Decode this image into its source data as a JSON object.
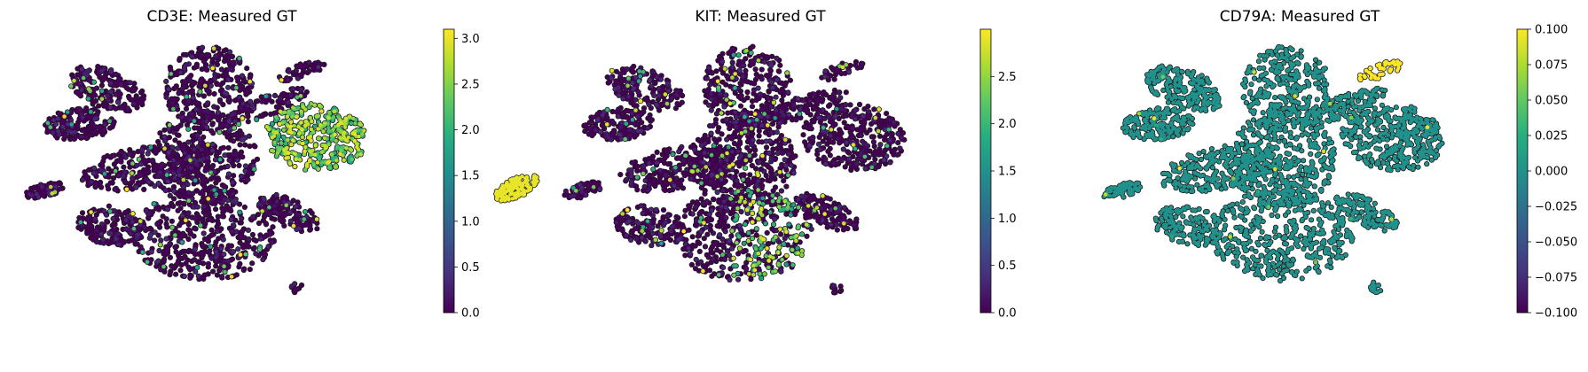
{
  "chart_data": [
    {
      "type": "scatter",
      "title": "CD3E: Measured GT",
      "colormap": "viridis",
      "colorbar": {
        "range": [
          0.0,
          3.1
        ],
        "ticks": [
          0.0,
          0.5,
          1.0,
          1.5,
          2.0,
          2.5,
          3.0
        ],
        "tick_labels": [
          "0.0",
          "0.5",
          "1.0",
          "1.5",
          "2.0",
          "2.5",
          "3.0"
        ]
      },
      "axes_visible": false,
      "baseline_value": 0.0,
      "high_expression_region": "right-lobe",
      "high_expression_mean": 2.4,
      "sparse_high_fraction": 0.04
    },
    {
      "type": "scatter",
      "title": "KIT: Measured GT",
      "colormap": "viridis",
      "colorbar": {
        "range": [
          0.0,
          3.0
        ],
        "ticks": [
          0.0,
          0.5,
          1.0,
          1.5,
          2.0,
          2.5
        ],
        "tick_labels": [
          "0.0",
          "0.5",
          "1.0",
          "1.5",
          "2.0",
          "2.5"
        ]
      },
      "axes_visible": false,
      "baseline_value": 0.0,
      "high_expression_region": "left-small-cluster",
      "high_expression_mean": 2.9,
      "secondary_region": "bottom-lobe",
      "sparse_high_fraction": 0.05
    },
    {
      "type": "scatter",
      "title": "CD79A: Measured GT",
      "colormap": "viridis",
      "colorbar": {
        "range": [
          -0.1,
          0.1
        ],
        "ticks": [
          -0.1,
          -0.075,
          -0.05,
          -0.025,
          0.0,
          0.025,
          0.05,
          0.075,
          0.1
        ],
        "tick_labels": [
          "−0.100",
          "−0.075",
          "−0.050",
          "−0.025",
          "0.000",
          "0.025",
          "0.050",
          "0.075",
          "0.100"
        ]
      },
      "axes_visible": false,
      "baseline_value": 0.0,
      "high_expression_region": "top-right-islands",
      "high_expression_mean": 0.1,
      "sparse_high_fraction": 0.01
    }
  ]
}
